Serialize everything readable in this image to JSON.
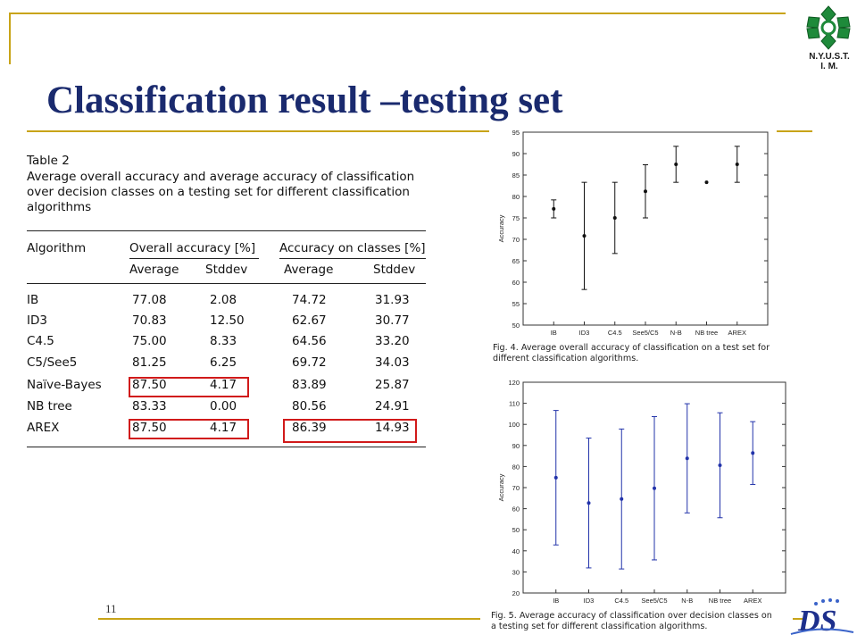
{
  "slide": {
    "title": "Classification result –testing set",
    "page_number": "11",
    "logo_text_line1": "N.Y.U.S.T.",
    "logo_text_line2": "I. M.",
    "logo_icon": "nyust-flower-logo",
    "footer_logo": "ds-lab-logo",
    "footer_logo_text": "DS"
  },
  "table": {
    "caption_label": "Table 2",
    "caption_lines": [
      "Average overall accuracy and average accuracy of classification",
      "over decision classes on a testing set for different classification",
      "algorithms"
    ],
    "header": {
      "algorithm": "Algorithm",
      "group1": "Overall accuracy [%]",
      "group2": "Accuracy on classes [%]",
      "average": "Average",
      "stddev": "Stddev"
    },
    "rows": [
      {
        "algorithm": "IB",
        "overall_avg": "77.08",
        "overall_std": "2.08",
        "class_avg": "74.72",
        "class_std": "31.93"
      },
      {
        "algorithm": "ID3",
        "overall_avg": "70.83",
        "overall_std": "12.50",
        "class_avg": "62.67",
        "class_std": "30.77"
      },
      {
        "algorithm": "C4.5",
        "overall_avg": "75.00",
        "overall_std": "8.33",
        "class_avg": "64.56",
        "class_std": "33.20"
      },
      {
        "algorithm": "C5/See5",
        "overall_avg": "81.25",
        "overall_std": "6.25",
        "class_avg": "69.72",
        "class_std": "34.03"
      },
      {
        "algorithm": "Naïve-Bayes",
        "overall_avg": "87.50",
        "overall_std": "4.17",
        "class_avg": "83.89",
        "class_std": "25.87"
      },
      {
        "algorithm": "NB tree",
        "overall_avg": "83.33",
        "overall_std": "0.00",
        "class_avg": "80.56",
        "class_std": "24.91"
      },
      {
        "algorithm": "AREX",
        "overall_avg": "87.50",
        "overall_std": "4.17",
        "class_avg": "86.39",
        "class_std": "14.93"
      }
    ],
    "highlight_color": "#d11a1a"
  },
  "chart_data": [
    {
      "type": "scatter",
      "error_bars": true,
      "categories": [
        "IB",
        "ID3",
        "C4.5",
        "See5/C5",
        "N-B",
        "NB tree",
        "AREX"
      ],
      "values": [
        77.1,
        70.8,
        75.0,
        81.2,
        87.5,
        83.3,
        87.5
      ],
      "errors": [
        2.1,
        12.5,
        8.3,
        6.2,
        4.2,
        0.0,
        4.2
      ],
      "ylabel": "Accuracy",
      "ylim": [
        50,
        95
      ],
      "yticks": [
        50,
        55,
        60,
        65,
        70,
        75,
        80,
        85,
        90,
        95
      ],
      "grid": false,
      "color": "#111111",
      "caption": [
        "Fig. 4. Average overall accuracy of classification on a test set for",
        "different classification algorithms."
      ]
    },
    {
      "type": "scatter",
      "error_bars": true,
      "categories": [
        "IB",
        "ID3",
        "C4.5",
        "See5/C5",
        "N-B",
        "NB tree",
        "AREX"
      ],
      "values": [
        74.7,
        62.7,
        64.6,
        69.7,
        83.9,
        80.6,
        86.4
      ],
      "errors": [
        31.9,
        30.8,
        33.2,
        34.0,
        25.9,
        24.9,
        14.9
      ],
      "ylabel": "Accuracy",
      "ylim": [
        20,
        120
      ],
      "yticks": [
        20,
        30,
        40,
        50,
        60,
        70,
        80,
        90,
        100,
        110,
        120
      ],
      "grid": false,
      "color": "#2233aa",
      "caption": [
        "Fig. 5. Average accuracy of classification over decision classes on",
        "a testing set for different classification algorithms."
      ]
    }
  ]
}
